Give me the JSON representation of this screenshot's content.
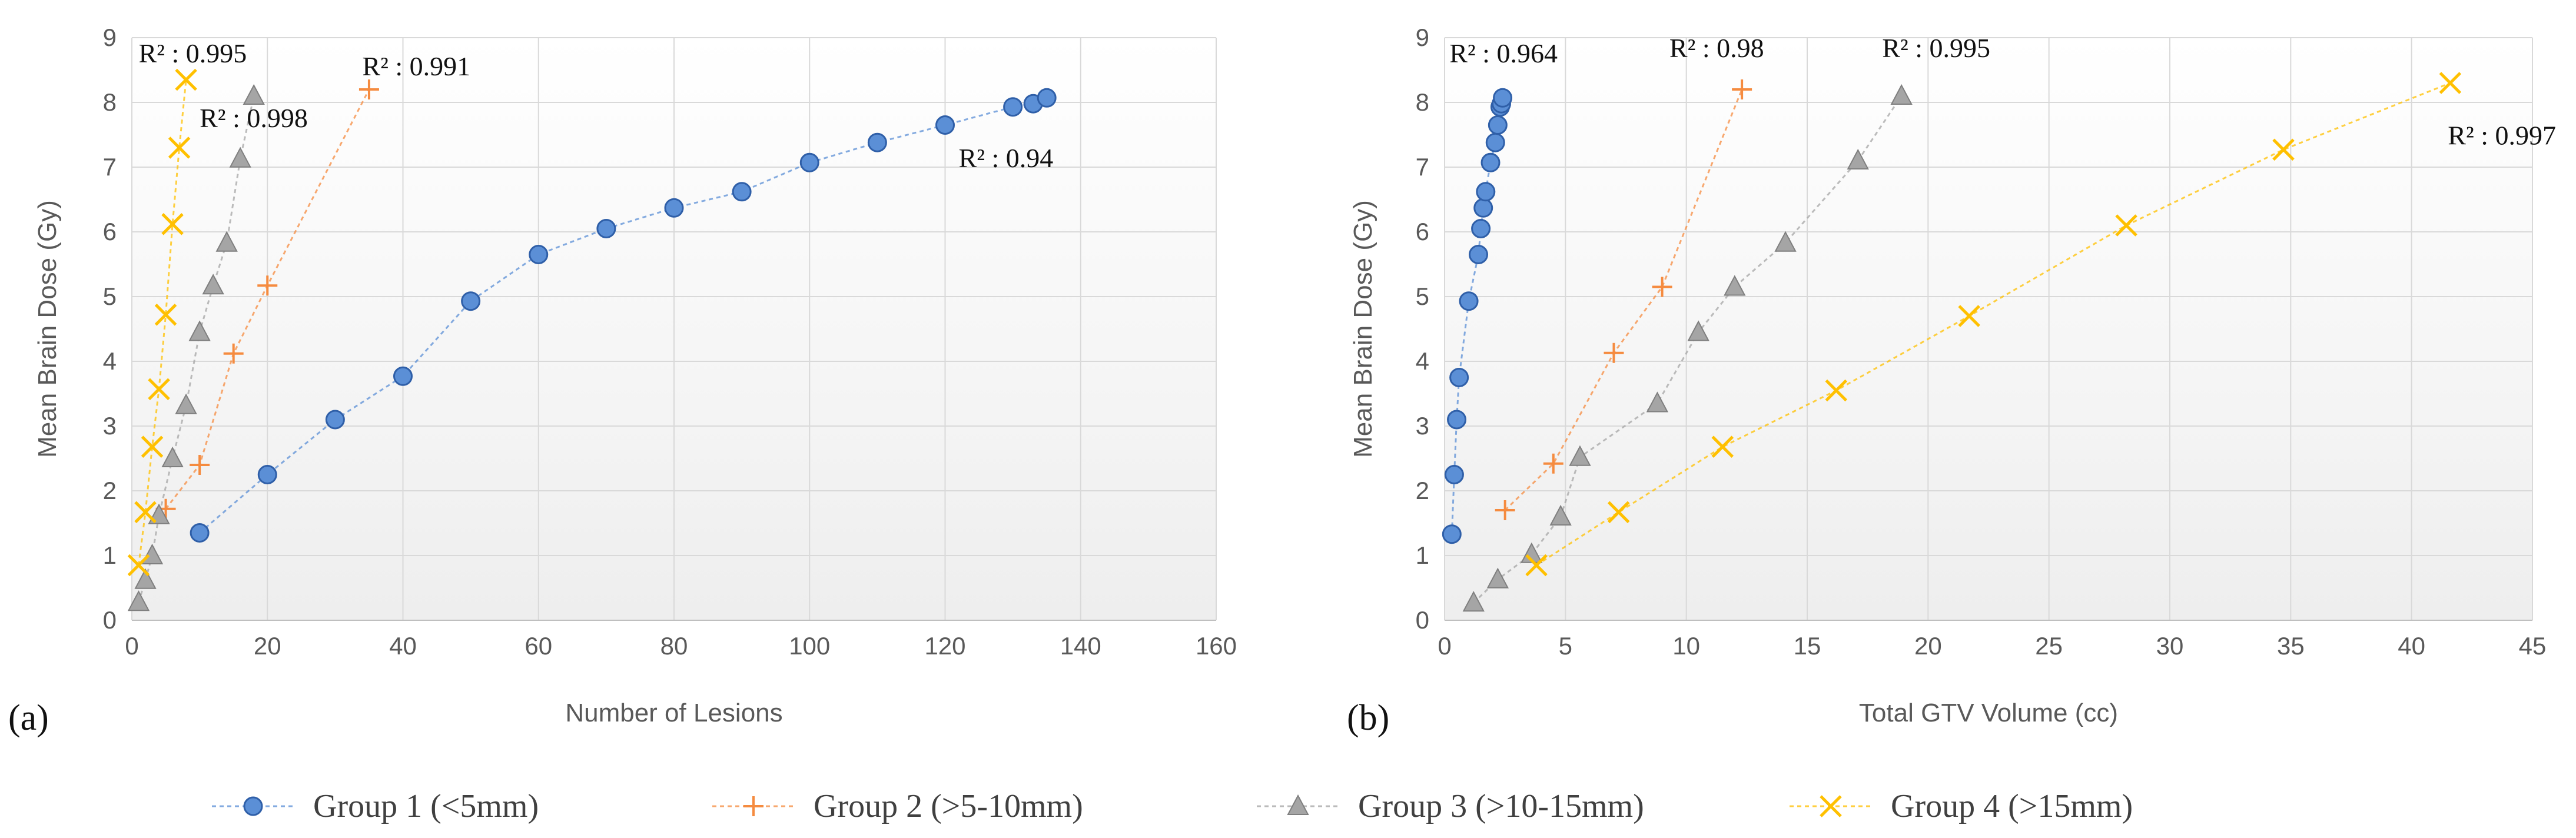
{
  "colors": {
    "group1": "#5b8fd6",
    "group1_edge": "#2f5fa8",
    "group2": "#f58b3f",
    "group3": "#a5a5a5",
    "group3_edge": "#7f7f7f",
    "group4": "#ffc000",
    "grid": "#d9d9d9",
    "text": "#595959",
    "bg_gradient_start": "#ffffff",
    "bg_gradient_end": "#eeeeee"
  },
  "legend": [
    {
      "key": "group1",
      "label": "Group 1 (<5mm)",
      "marker": "circle"
    },
    {
      "key": "group2",
      "label": "Group 2 (>5-10mm)",
      "marker": "plus"
    },
    {
      "key": "group3",
      "label": "Group 3 (>10-15mm)",
      "marker": "triangle"
    },
    {
      "key": "group4",
      "label": "Group 4 (>15mm)",
      "marker": "cross"
    }
  ],
  "chart_data": [
    {
      "panel": "(a)",
      "type": "scatter",
      "xlabel": "Number of Lesions",
      "ylabel": "Mean Brain Dose (Gy)",
      "xlim": [
        0,
        160
      ],
      "ylim": [
        0,
        9
      ],
      "xticks": [
        0,
        20,
        40,
        60,
        80,
        100,
        120,
        140,
        160
      ],
      "yticks": [
        0,
        1,
        2,
        3,
        4,
        5,
        6,
        7,
        8,
        9
      ],
      "series": [
        {
          "key": "group1",
          "name": "Group 1 (<5mm)",
          "marker": "circle",
          "x": [
            10,
            20,
            30,
            40,
            50,
            60,
            70,
            80,
            90,
            100,
            110,
            120,
            130,
            133,
            135
          ],
          "y": [
            1.35,
            2.25,
            3.1,
            3.77,
            4.93,
            5.65,
            6.05,
            6.37,
            6.62,
            7.07,
            7.38,
            7.65,
            7.93,
            7.98,
            8.07
          ]
        },
        {
          "key": "group2",
          "name": "Group 2 (>5-10mm)",
          "marker": "plus",
          "x": [
            5,
            10,
            15,
            20,
            35
          ],
          "y": [
            1.72,
            2.4,
            4.12,
            5.17,
            8.2
          ]
        },
        {
          "key": "group3",
          "name": "Group 3 (>10-15mm)",
          "marker": "triangle",
          "x": [
            1,
            2,
            3,
            4,
            6,
            8,
            10,
            12,
            14,
            16,
            18
          ],
          "y": [
            0.28,
            0.62,
            1.0,
            1.62,
            2.5,
            3.32,
            4.45,
            5.17,
            5.83,
            7.13,
            8.1
          ]
        },
        {
          "key": "group4",
          "name": "Group 4 (>15mm)",
          "marker": "cross",
          "x": [
            1,
            2,
            3,
            4,
            5,
            6,
            7,
            8
          ],
          "y": [
            0.85,
            1.67,
            2.68,
            3.57,
            4.72,
            6.12,
            7.3,
            8.35
          ]
        }
      ],
      "annotations": [
        {
          "text": "R² : 0.995",
          "x": 1,
          "y": 8.62
        },
        {
          "text": "R² : 0.991",
          "x": 34,
          "y": 8.42
        },
        {
          "text": "R² : 0.998",
          "x": 10,
          "y": 7.62
        },
        {
          "text": "R² : 0.94",
          "x": 122,
          "y": 7.0
        }
      ]
    },
    {
      "panel": "(b)",
      "type": "scatter",
      "xlabel": "Total GTV Volume (cc)",
      "ylabel": "Mean Brain Dose (Gy)",
      "xlim": [
        0,
        45
      ],
      "ylim": [
        0,
        9
      ],
      "xticks": [
        0,
        5,
        10,
        15,
        20,
        25,
        30,
        35,
        40,
        45
      ],
      "yticks": [
        0,
        1,
        2,
        3,
        4,
        5,
        6,
        7,
        8,
        9
      ],
      "series": [
        {
          "key": "group1",
          "name": "Group 1 (<5mm)",
          "marker": "circle",
          "x": [
            0.3,
            0.4,
            0.5,
            0.6,
            1.0,
            1.4,
            1.5,
            1.6,
            1.7,
            1.9,
            2.1,
            2.2,
            2.3,
            2.35,
            2.4
          ],
          "y": [
            1.33,
            2.25,
            3.1,
            3.75,
            4.93,
            5.65,
            6.05,
            6.37,
            6.62,
            7.07,
            7.38,
            7.65,
            7.93,
            7.98,
            8.07
          ]
        },
        {
          "key": "group2",
          "name": "Group 2 (>5-10mm)",
          "marker": "plus",
          "x": [
            2.5,
            4.5,
            7.0,
            9.0,
            12.3
          ],
          "y": [
            1.7,
            2.42,
            4.13,
            5.15,
            8.2
          ]
        },
        {
          "key": "group3",
          "name": "Group 3 (>10-15mm)",
          "marker": "triangle",
          "x": [
            1.2,
            2.2,
            3.6,
            4.8,
            5.6,
            8.8,
            10.5,
            12.0,
            14.1,
            17.1,
            18.9
          ],
          "y": [
            0.27,
            0.63,
            1.02,
            1.6,
            2.52,
            3.35,
            4.45,
            5.15,
            5.83,
            7.1,
            8.1
          ]
        },
        {
          "key": "group4",
          "name": "Group 4 (>15mm)",
          "marker": "cross",
          "x": [
            3.8,
            7.2,
            11.5,
            16.2,
            21.7,
            28.2,
            34.7,
            41.6
          ],
          "y": [
            0.85,
            1.67,
            2.68,
            3.55,
            4.7,
            6.1,
            7.27,
            8.3
          ]
        }
      ],
      "annotations": [
        {
          "text": "R² : 0.964",
          "x": 0.2,
          "y": 8.62
        },
        {
          "text": "R² : 0.98",
          "x": 9.3,
          "y": 8.7
        },
        {
          "text": "R² : 0.995",
          "x": 18.1,
          "y": 8.7
        },
        {
          "text": "R² : 0.997",
          "x": 41.5,
          "y": 7.35
        }
      ]
    }
  ]
}
